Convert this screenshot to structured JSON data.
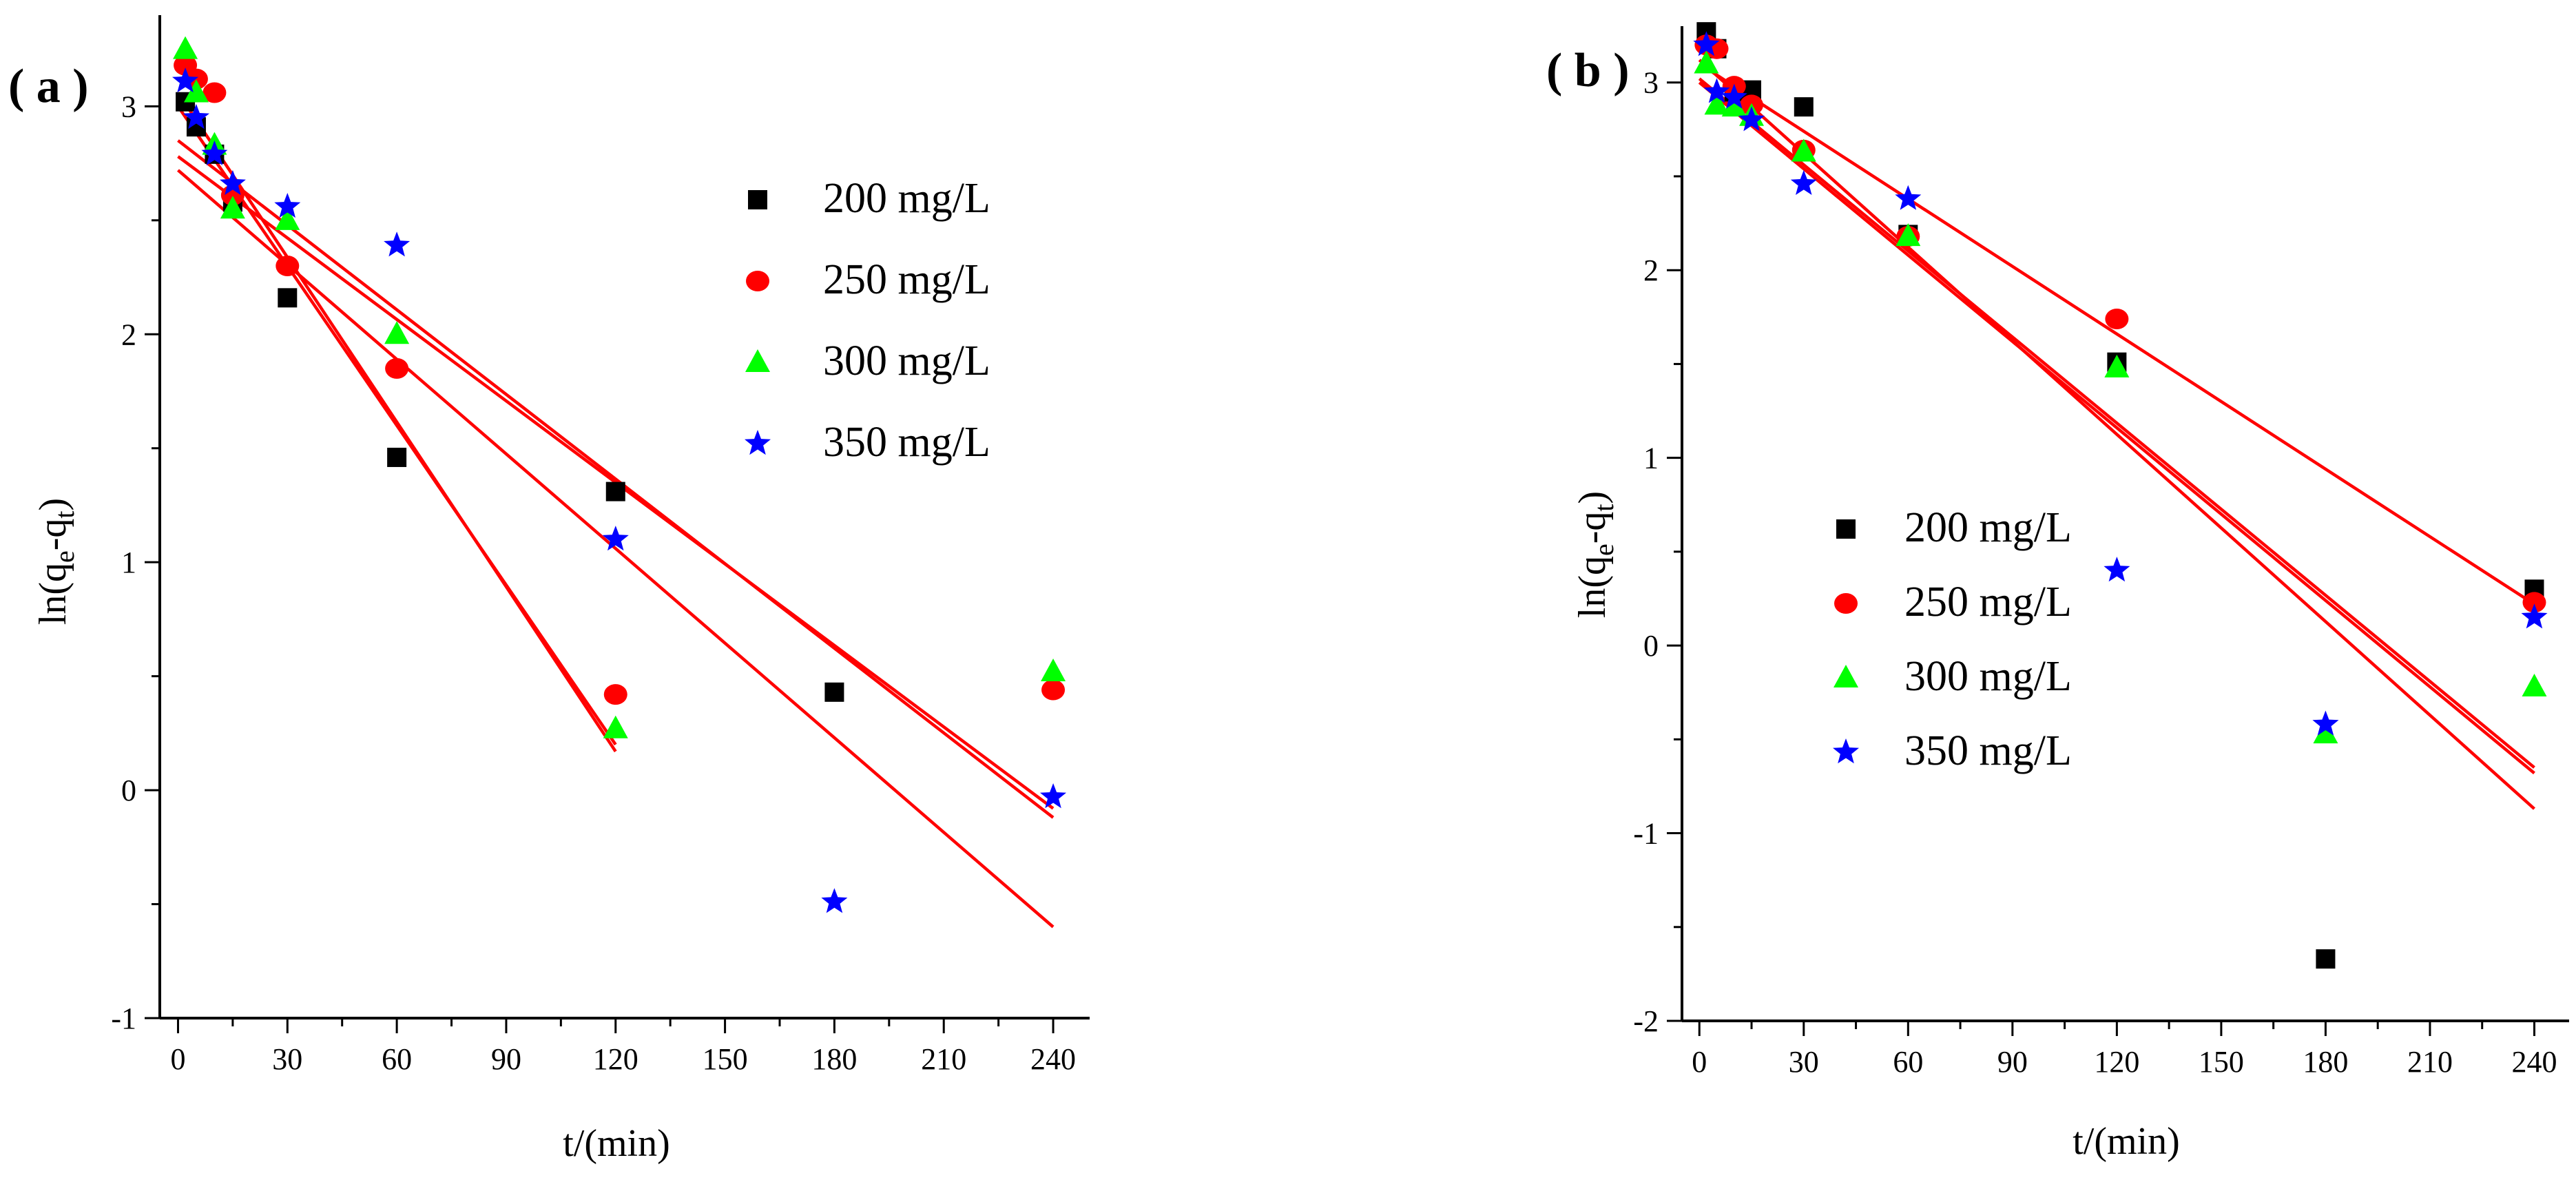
{
  "colors": {
    "s200": "#000000",
    "s250": "#ff0000",
    "s300": "#00ff00",
    "s350": "#0000ff",
    "fit": "#ff0000",
    "axis": "#000000"
  },
  "chart_data": [
    {
      "type": "scatter",
      "panel_label": "( a )",
      "title": "",
      "xlabel": "t/(min)",
      "ylabel_base": "ln(q",
      "ylabel_e": "e",
      "ylabel_mid": "-q",
      "ylabel_t": "t",
      "ylabel_end": ")",
      "ylabel_full": "ln(qe-qt)",
      "xlim": [
        -5,
        250
      ],
      "ylim": [
        -1,
        3.4
      ],
      "xticks": [
        0,
        30,
        60,
        90,
        120,
        150,
        180,
        210,
        240
      ],
      "yticks": [
        -1,
        0,
        1,
        2,
        3
      ],
      "legend_position": "top-right",
      "series": [
        {
          "name": "200 mg/L",
          "marker": "square",
          "color_key": "s200",
          "x": [
            2,
            5,
            10,
            15,
            30,
            60,
            120,
            180
          ],
          "y": [
            3.02,
            2.91,
            2.79,
            2.58,
            2.16,
            1.46,
            1.31,
            0.43
          ]
        },
        {
          "name": "250 mg/L",
          "marker": "circle",
          "color_key": "s250",
          "x": [
            2,
            5,
            10,
            15,
            30,
            60,
            120,
            240
          ],
          "y": [
            3.18,
            3.12,
            3.06,
            2.61,
            2.3,
            1.85,
            0.42,
            0.44
          ]
        },
        {
          "name": "300 mg/L",
          "marker": "triangle",
          "color_key": "s300",
          "x": [
            2,
            5,
            10,
            15,
            30,
            60,
            120,
            240
          ],
          "y": [
            3.25,
            3.06,
            2.83,
            2.55,
            2.5,
            2.0,
            0.27,
            0.52
          ]
        },
        {
          "name": "350 mg/L",
          "marker": "star",
          "color_key": "s350",
          "x": [
            2,
            5,
            10,
            15,
            30,
            60,
            120,
            180,
            240
          ],
          "y": [
            3.11,
            2.95,
            2.79,
            2.66,
            2.56,
            2.39,
            1.1,
            -0.49,
            -0.03
          ]
        }
      ],
      "fit_lines": [
        {
          "x": [
            0,
            240
          ],
          "y": [
            2.72,
            -0.6
          ]
        },
        {
          "x": [
            0,
            240
          ],
          "y": [
            2.85,
            -0.12
          ]
        },
        {
          "x": [
            0,
            240
          ],
          "y": [
            2.78,
            -0.08
          ]
        },
        {
          "x": [
            0,
            120
          ],
          "y": [
            3.0,
            0.2
          ]
        },
        {
          "x": [
            0,
            120
          ],
          "y": [
            3.06,
            0.17
          ]
        }
      ]
    },
    {
      "type": "scatter",
      "panel_label": "( b )",
      "title": "",
      "xlabel": "t/(min)",
      "ylabel_base": "ln(q",
      "ylabel_e": "e",
      "ylabel_mid": "-q",
      "ylabel_t": "t",
      "ylabel_end": ")",
      "ylabel_full": "ln(qe-qt)",
      "xlim": [
        -5,
        250
      ],
      "ylim": [
        -2,
        3.3
      ],
      "xticks": [
        0,
        30,
        60,
        90,
        120,
        150,
        180,
        210,
        240
      ],
      "yticks": [
        -2,
        -1,
        0,
        1,
        2,
        3
      ],
      "legend_position": "center",
      "series": [
        {
          "name": "200 mg/L",
          "marker": "square",
          "color_key": "s200",
          "x": [
            2,
            5,
            10,
            15,
            30,
            60,
            120,
            180,
            240
          ],
          "y": [
            3.27,
            3.18,
            2.95,
            2.96,
            2.87,
            2.19,
            1.51,
            -1.67,
            0.3
          ]
        },
        {
          "name": "250 mg/L",
          "marker": "circle",
          "color_key": "s250",
          "x": [
            2,
            5,
            10,
            15,
            30,
            60,
            120,
            240
          ],
          "y": [
            3.2,
            3.18,
            2.98,
            2.88,
            2.64,
            2.18,
            1.74,
            0.23
          ]
        },
        {
          "name": "300 mg/L",
          "marker": "triangle",
          "color_key": "s300",
          "x": [
            2,
            5,
            10,
            15,
            30,
            60,
            120,
            180,
            240
          ],
          "y": [
            3.1,
            2.88,
            2.87,
            2.82,
            2.63,
            2.18,
            1.48,
            -0.47,
            -0.22
          ]
        },
        {
          "name": "350 mg/L",
          "marker": "star",
          "color_key": "s350",
          "x": [
            2,
            5,
            10,
            15,
            30,
            60,
            120,
            180,
            240
          ],
          "y": [
            3.2,
            2.95,
            2.92,
            2.8,
            2.46,
            2.38,
            0.4,
            -0.42,
            0.15
          ]
        }
      ],
      "fit_lines": [
        {
          "x": [
            0,
            240
          ],
          "y": [
            3.1,
            0.22
          ]
        },
        {
          "x": [
            0,
            240
          ],
          "y": [
            3.02,
            -0.65
          ]
        },
        {
          "x": [
            0,
            240
          ],
          "y": [
            3.0,
            -0.68
          ]
        },
        {
          "x": [
            0,
            240
          ],
          "y": [
            3.12,
            -0.87
          ]
        }
      ]
    }
  ]
}
